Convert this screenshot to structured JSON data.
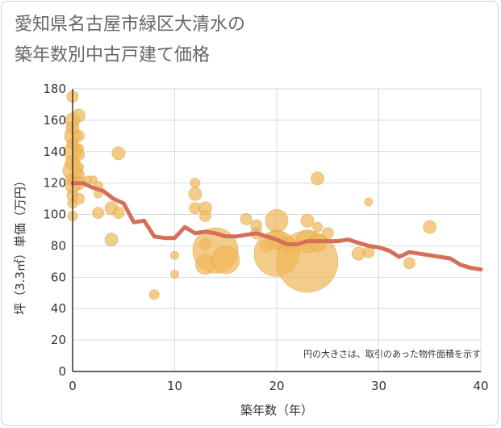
{
  "title_line1": "愛知県名古屋市緑区大清水の",
  "title_line2": "築年数別中古戸建て価格",
  "colors": {
    "bubble_fill": "#f0b657",
    "bubble_stroke": "#e0a040",
    "line": "#d4705a",
    "grid": "#d5dbe3",
    "plot_bg": "#ffffff"
  },
  "chart_data": {
    "type": "scatter",
    "xlabel": "築年数（年）",
    "ylabel": "坪（3.3㎡）単価（万円）",
    "xlim": [
      0,
      40
    ],
    "ylim": [
      0,
      180
    ],
    "xticks": [
      "0",
      "10",
      "20",
      "30",
      "40"
    ],
    "yticks": [
      "0",
      "20",
      "40",
      "60",
      "80",
      "100",
      "120",
      "140",
      "160",
      "180"
    ],
    "note": "円の大きさは、取引のあった物件面積を示す",
    "bubbles": [
      [
        0,
        175,
        7
      ],
      [
        0,
        160,
        9
      ],
      [
        0,
        155,
        8
      ],
      [
        0,
        150,
        10
      ],
      [
        0,
        145,
        7
      ],
      [
        0,
        140,
        11
      ],
      [
        0,
        133,
        9
      ],
      [
        0,
        128,
        12
      ],
      [
        0,
        122,
        8
      ],
      [
        0,
        118,
        9
      ],
      [
        0,
        112,
        7
      ],
      [
        0,
        107,
        6
      ],
      [
        0,
        99,
        6
      ],
      [
        0.6,
        163,
        8
      ],
      [
        0.6,
        150,
        7
      ],
      [
        0.6,
        142,
        6
      ],
      [
        0.6,
        138,
        7
      ],
      [
        0.6,
        130,
        6
      ],
      [
        0.6,
        125,
        7
      ],
      [
        0.6,
        120,
        8
      ],
      [
        0.6,
        110,
        7
      ],
      [
        1.5,
        122,
        5
      ],
      [
        2,
        122,
        5
      ],
      [
        2.5,
        118,
        6
      ],
      [
        2.5,
        113,
        5
      ],
      [
        2.5,
        101,
        7
      ],
      [
        3.8,
        104,
        8
      ],
      [
        3.8,
        84,
        8
      ],
      [
        4.5,
        139,
        8
      ],
      [
        4.5,
        101,
        7
      ],
      [
        8,
        49,
        6
      ],
      [
        10,
        74,
        5
      ],
      [
        10,
        62,
        5
      ],
      [
        12,
        120,
        6
      ],
      [
        12,
        113,
        8
      ],
      [
        12,
        104,
        7
      ],
      [
        13,
        104,
        8
      ],
      [
        13,
        99,
        7
      ],
      [
        13,
        81,
        7
      ],
      [
        14,
        77,
        28
      ],
      [
        13,
        68,
        12
      ],
      [
        15,
        71,
        17
      ],
      [
        17,
        97,
        7
      ],
      [
        18,
        93,
        7
      ],
      [
        18,
        88,
        7
      ],
      [
        19,
        80,
        8
      ],
      [
        20,
        96,
        14
      ],
      [
        20,
        84,
        12
      ],
      [
        20,
        75,
        28
      ],
      [
        21,
        80,
        11
      ],
      [
        23,
        70,
        38
      ],
      [
        23,
        96,
        8
      ],
      [
        24,
        92,
        6
      ],
      [
        23,
        83,
        14
      ],
      [
        24,
        82,
        11
      ],
      [
        25,
        88,
        7
      ],
      [
        24,
        123,
        8
      ],
      [
        28,
        75,
        8
      ],
      [
        29,
        76,
        7
      ],
      [
        29,
        108,
        5
      ],
      [
        33,
        69,
        7
      ],
      [
        35,
        92,
        8
      ]
    ],
    "line": {
      "x": [
        0,
        1,
        2,
        3,
        4,
        5,
        6,
        7,
        8,
        9,
        10,
        11,
        12,
        13,
        14,
        15,
        16,
        17,
        18,
        19,
        20,
        21,
        22,
        23,
        24,
        25,
        26,
        27,
        28,
        29,
        30,
        31,
        32,
        33,
        34,
        35,
        36,
        37,
        38,
        39,
        40
      ],
      "y": [
        120,
        120,
        117,
        115,
        110,
        107,
        95,
        96,
        86,
        85,
        85,
        92,
        88,
        89,
        88,
        86,
        86,
        87,
        88,
        86,
        84,
        81,
        81,
        83,
        83,
        83,
        83,
        84,
        82,
        80,
        79,
        77,
        73,
        76,
        75,
        74,
        73,
        72,
        68,
        66,
        65
      ]
    }
  }
}
